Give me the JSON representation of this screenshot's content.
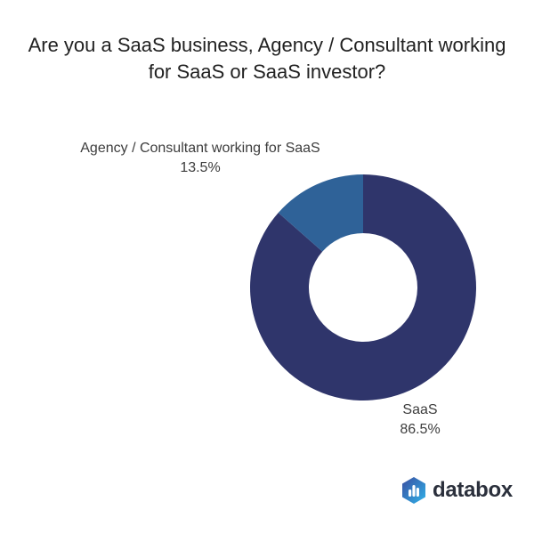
{
  "title_lines": [
    "Are you a SaaS business, Agency / Consultant working",
    "for SaaS or SaaS investor?"
  ],
  "chart_data": {
    "type": "pie",
    "subtype": "donut",
    "title": "Are you a SaaS business, Agency / Consultant working for SaaS or SaaS investor?",
    "direction": "clockwise",
    "start_angle_deg": 0,
    "inner_radius_ratio": 0.48,
    "legend_position": "none",
    "segments": [
      {
        "label": "SaaS",
        "value": 86.5,
        "display_pct": "86.5%",
        "color": "#2f356b"
      },
      {
        "label": "Agency / Consultant working for SaaS",
        "value": 13.5,
        "display_pct": "13.5%",
        "color": "#2f6298"
      }
    ]
  },
  "logo": {
    "text": "databox",
    "text_color": "#2b303c",
    "icon": "databox-hexagon-bars-icon",
    "icon_gradient_start": "#3b4ea0",
    "icon_gradient_end": "#2fb3ea",
    "icon_bar_color": "#ffffff"
  }
}
